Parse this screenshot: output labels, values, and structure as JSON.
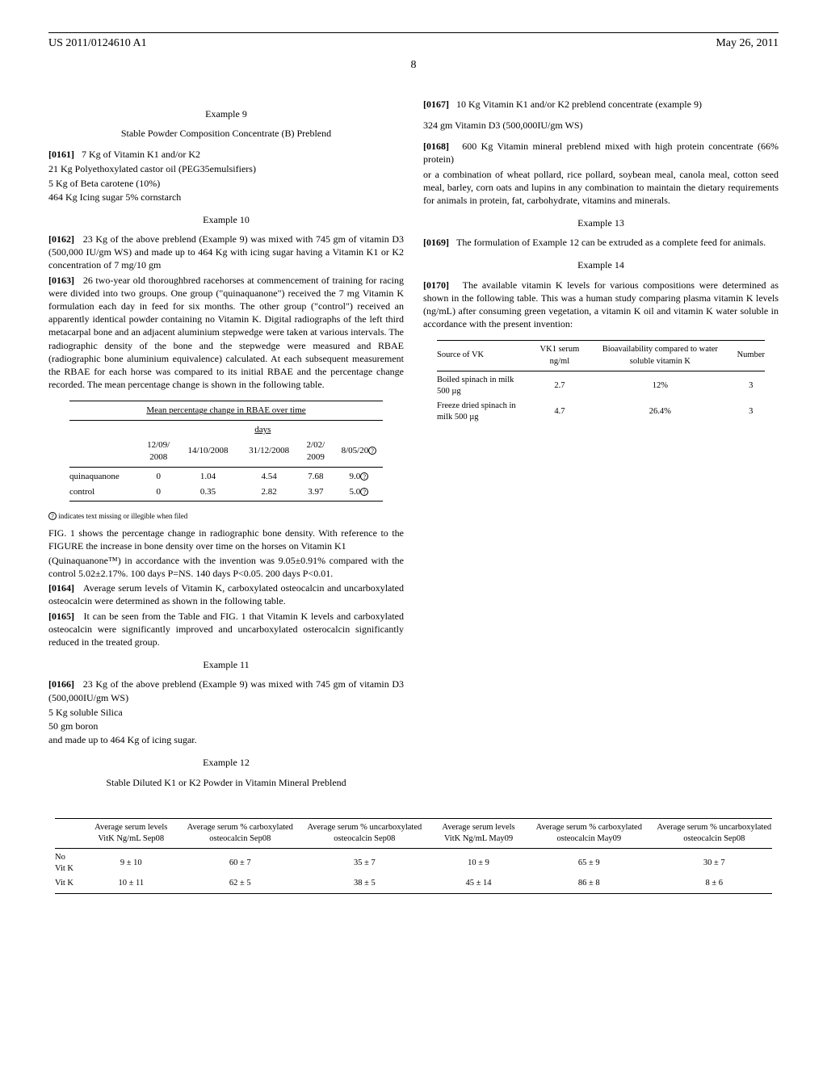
{
  "header": {
    "left": "US 2011/0124610 A1",
    "right": "May 26, 2011",
    "page": "8"
  },
  "ex9": {
    "title": "Example 9",
    "sub": "Stable Powder Composition Concentrate (B) Preblend",
    "p1_num": "[0161]",
    "p1": "7 Kg of Vitamin K1 and/or K2",
    "l2": "21 Kg Polyethoxylated castor oil (PEG35emulsifiers)",
    "l3": "5 Kg of Beta carotene (10%)",
    "l4": "464 Kg Icing sugar 5% cornstarch"
  },
  "ex10": {
    "title": "Example 10",
    "p1_num": "[0162]",
    "p1": "23 Kg of the above preblend (Example 9) was mixed with 745 gm of vitamin D3 (500,000 IU/gm WS) and made up to 464 Kg with icing sugar having a Vitamin K1 or K2 concentration of 7 mg/10 gm",
    "p2_num": "[0163]",
    "p2": "26 two-year old thoroughbred racehorses at commencement of training for racing were divided into two groups. One group (\"quinaquanone\") received the 7 mg Vitamin K formulation each day in feed for six months. The other group (\"control\") received an apparently identical powder containing no Vitamin K. Digital radiographs of the left third metacarpal bone and an adjacent aluminium stepwedge were taken at various intervals. The radiographic density of the bone and the stepwedge were measured and RBAE (radiographic bone aluminium equivalence) calculated. At each subsequent measurement the RBAE for each horse was compared to its initial RBAE and the percentage change recorded. The mean percentage change is shown in the following table."
  },
  "rbae": {
    "caption": "Mean percentage change in RBAE over time",
    "days_label": "days",
    "headers": [
      "12/09/\n2008",
      "14/10/2008",
      "31/12/2008",
      "2/02/\n2009",
      "8/05/20"
    ],
    "rows": [
      {
        "label": "quinaquanone",
        "v": [
          "0",
          "1.04",
          "4.54",
          "7.68",
          "9.0"
        ]
      },
      {
        "label": "control",
        "v": [
          "0",
          "0.35",
          "2.82",
          "3.97",
          "5.0"
        ]
      }
    ],
    "note": "indicates text missing or illegible when filed"
  },
  "fig1": {
    "p1": "FIG. 1 shows the percentage change in radiographic bone density. With reference to the FIGURE the increase in bone density over time on the horses on Vitamin K1",
    "p2": "(Quinaquanone™) in accordance with the invention was 9.05±0.91% compared with the control 5.02±2.17%. 100 days P=NS. 140 days P<0.05. 200 days P<0.01.",
    "p3_num": "[0164]",
    "p3": "Average serum levels of Vitamin K, carboxylated osteocalcin and uncarboxylated osteocalcin were determined as shown in the following table."
  },
  "col2": {
    "p1_num": "[0165]",
    "p1": "It can be seen from the Table and FIG. 1 that Vitamin K levels and carboxylated osteocalcin were significantly improved and uncarboxylated osterocalcin significantly reduced in the treated group."
  },
  "ex11": {
    "title": "Example 11",
    "p1_num": "[0166]",
    "p1": "23 Kg of the above preblend (Example 9) was mixed with 745 gm of vitamin D3 (500,000IU/gm WS)",
    "l2": "5 Kg soluble Silica",
    "l3": "50 gm boron",
    "l4": "and made up to 464 Kg of icing sugar."
  },
  "ex12": {
    "title": "Example 12",
    "sub": "Stable Diluted K1 or K2 Powder in Vitamin Mineral Preblend",
    "p1_num": "[0167]",
    "p1": "10 Kg Vitamin K1 and/or K2 preblend concentrate (example 9)",
    "l2": "324 gm Vitamin D3 (500,000IU/gm WS)",
    "p2_num": "[0168]",
    "p2": "600 Kg Vitamin mineral preblend mixed with high protein concentrate (66% protein)",
    "p3": "or a combination of wheat pollard, rice pollard, soybean meal, canola meal, cotton seed meal, barley, corn oats and lupins in any combination to maintain the dietary requirements for animals in protein, fat, carbohydrate, vitamins and minerals."
  },
  "ex13": {
    "title": "Example 13",
    "p1_num": "[0169]",
    "p1": "The formulation of Example 12 can be extruded as a complete feed for animals."
  },
  "ex14": {
    "title": "Example 14",
    "p1_num": "[0170]",
    "p1": "The available vitamin K levels for various compositions were determined as shown in the following table. This was a human study comparing plasma vitamin K levels (ng/mL) after consuming green vegetation, a vitamin K oil and vitamin K water soluble in accordance with the present invention:"
  },
  "bio": {
    "headers": [
      "Source of VK",
      "VK1 serum ng/ml",
      "Bioavailability compared to water soluble vitamin K",
      "Number"
    ],
    "rows": [
      {
        "c": [
          "Boiled spinach in milk 500 µg",
          "2.7",
          "12%",
          "3"
        ]
      },
      {
        "c": [
          "Freeze dried spinach in milk 500 µg",
          "4.7",
          "26.4%",
          "3"
        ]
      }
    ]
  },
  "serum": {
    "headers": [
      "",
      "Average serum levels VitK Ng/mL Sep08",
      "Average serum % carboxylated osteocalcin Sep08",
      "Average serum % uncarboxylated osteocalcin Sep08",
      "Average serum levels VitK Ng/mL May09",
      "Average serum % carboxylated osteocalcin May09",
      "Average serum % uncarboxylated osteocalcin Sep08"
    ],
    "rows": [
      {
        "label": "No Vit K",
        "v": [
          "9 ± 10",
          "60 ± 7",
          "35 ± 7",
          "10 ± 9",
          "65 ± 9",
          "30 ± 7"
        ]
      },
      {
        "label": "Vit K",
        "v": [
          "10 ± 11",
          "62 ± 5",
          "38 ± 5",
          "45 ± 14",
          "86 ± 8",
          "8 ± 6"
        ]
      }
    ]
  }
}
